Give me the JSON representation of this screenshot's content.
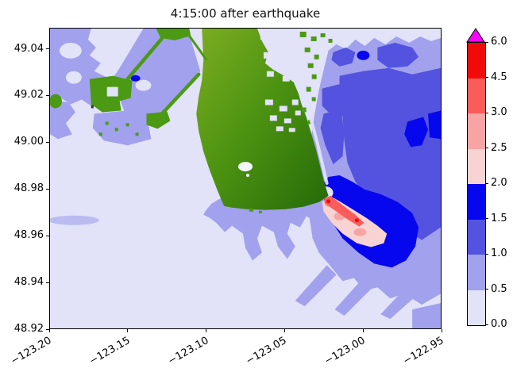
{
  "figure": {
    "title": "4:15:00 after earthquake",
    "background": "#ffffff"
  },
  "axes": {
    "x_tick_labels": [
      "−123.20",
      "−123.15",
      "−123.10",
      "−123.05",
      "−123.00",
      "−122.95"
    ],
    "x_tick_values": [
      -123.2,
      -123.15,
      -123.1,
      -123.05,
      -123.0,
      -122.95
    ],
    "y_tick_labels": [
      "49.04",
      "49.02",
      "49.00",
      "48.98",
      "48.96",
      "48.94",
      "48.92"
    ],
    "y_tick_values": [
      49.04,
      49.02,
      49.0,
      48.98,
      48.96,
      48.94,
      48.92
    ],
    "x_range": [
      -123.2,
      -122.95
    ],
    "y_range": [
      48.92,
      49.049
    ]
  },
  "colorbar": {
    "tick_labels": [
      "0.0",
      "0.5",
      "1.0",
      "1.5",
      "2.0",
      "2.5",
      "3.0",
      "4.5",
      "6.0"
    ],
    "boundaries": [
      0.0,
      0.5,
      1.0,
      1.5,
      2.0,
      2.5,
      3.0,
      4.5,
      6.0
    ],
    "segment_colors": [
      "#E2E2F8",
      "#A1A1EE",
      "#5353E0",
      "#0707EE",
      "#F8D3D3",
      "#F9A4A4",
      "#FA5C5C",
      "#F20A0A"
    ],
    "over_color": "#F607F6",
    "orientation": "vertical-right"
  },
  "palette": {
    "pale": "#E2E2F8",
    "peri": "#A1A1EE",
    "mid": "#5353E0",
    "blue": "#0707EE",
    "pink1": "#F8D3D3",
    "pink2": "#F9A4A4",
    "salmon": "#FA5C5C",
    "red": "#F20A0A",
    "magenta": "#F607F6",
    "land_light": "#7CAD20",
    "land_mid": "#4E9412",
    "land_dark": "#256A08",
    "land_flat": "#4C9913",
    "pond": "#F6F6FF",
    "axis": "#000000"
  },
  "chart_data": {
    "type": "heatmap",
    "title": "4:15:00 after earthquake",
    "time_label": "4:15:00",
    "xlabel": "",
    "ylabel": "",
    "xlim": [
      -123.2,
      -122.95
    ],
    "ylim": [
      48.92,
      49.049
    ],
    "x_ticks": [
      -123.2,
      -123.15,
      -123.1,
      -123.05,
      -123.0,
      -122.95
    ],
    "y_ticks": [
      49.04,
      49.02,
      49.0,
      48.98,
      48.96,
      48.94,
      48.92
    ],
    "grid": false,
    "legend_position": "colorbar-right",
    "color_levels": {
      "boundaries": [
        0.0,
        0.5,
        1.0,
        1.5,
        2.0,
        2.5,
        3.0,
        4.5,
        6.0
      ],
      "colors": [
        "#E2E2F8",
        "#A1A1EE",
        "#5353E0",
        "#0707EE",
        "#F8D3D3",
        "#F9A4A4",
        "#FA5C5C",
        "#F20A0A"
      ],
      "over_color": "#F607F6"
    },
    "features": [
      {
        "name": "open-water-southwest-half",
        "value_range": [
          0.0,
          0.5
        ],
        "approx_extent": {
          "lon": [
            -123.2,
            -123.03
          ],
          "lat": [
            48.92,
            49.0
          ]
        }
      },
      {
        "name": "nearshore-band-northwest-and-tidal-flats",
        "value_range": [
          0.5,
          1.0
        ],
        "approx_extent": {
          "lon": [
            -123.2,
            -123.07
          ],
          "lat": [
            49.0,
            49.05
          ]
        }
      },
      {
        "name": "bay-east-of-peninsula",
        "value_range": [
          0.5,
          1.5
        ],
        "approx_extent": {
          "lon": [
            -123.03,
            -122.95
          ],
          "lat": [
            48.95,
            49.04
          ]
        }
      },
      {
        "name": "high-ring-southeast-of-headland",
        "value_range": [
          1.5,
          2.0
        ],
        "approx_center": {
          "lon": [
            -123.0
          ],
          "lat": [
            48.963
          ]
        }
      },
      {
        "name": "maximum-zone-southeast-of-headland",
        "value_range": [
          2.0,
          4.5
        ],
        "approx_center": {
          "lon": [
            -123.012
          ],
          "lat": [
            48.967
          ]
        }
      },
      {
        "name": "land-delta-uplands-peninsula-causeways-port",
        "value_range": null,
        "rendered_as": "green terrain"
      }
    ]
  }
}
